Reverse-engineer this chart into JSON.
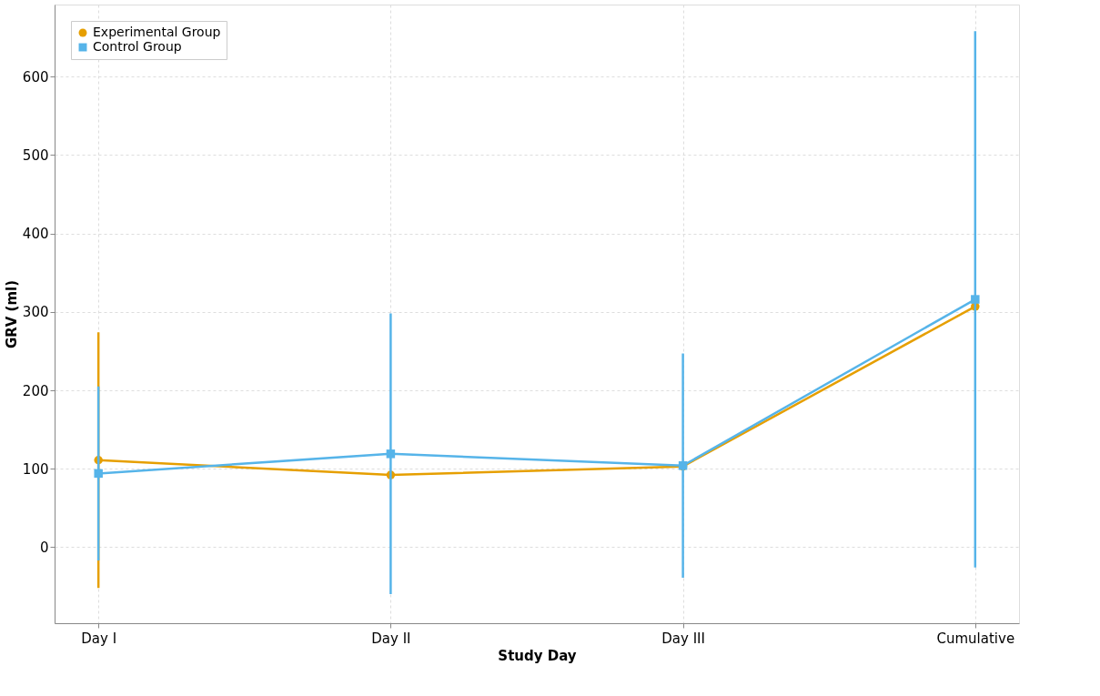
{
  "chart_data": {
    "type": "line",
    "xlabel": "Study Day",
    "ylabel": "GRV (ml)",
    "categories": [
      "Day I",
      "Day II",
      "Day III",
      "Cumulative"
    ],
    "series": [
      {
        "name": "Experimental Group",
        "color": "#e69f00",
        "marker": "circle",
        "values": [
          111,
          92,
          103,
          307
        ],
        "errors": [
          163,
          null,
          null,
          null
        ]
      },
      {
        "name": "Control Group",
        "color": "#56b4e9",
        "marker": "square",
        "values": [
          94,
          119,
          104,
          316
        ],
        "errors": [
          111,
          179,
          143,
          342
        ]
      }
    ],
    "ylim": [
      -97,
      692
    ],
    "yticks": [
      0,
      100,
      200,
      300,
      400,
      500,
      600
    ],
    "grid": true,
    "legend": "top left"
  }
}
